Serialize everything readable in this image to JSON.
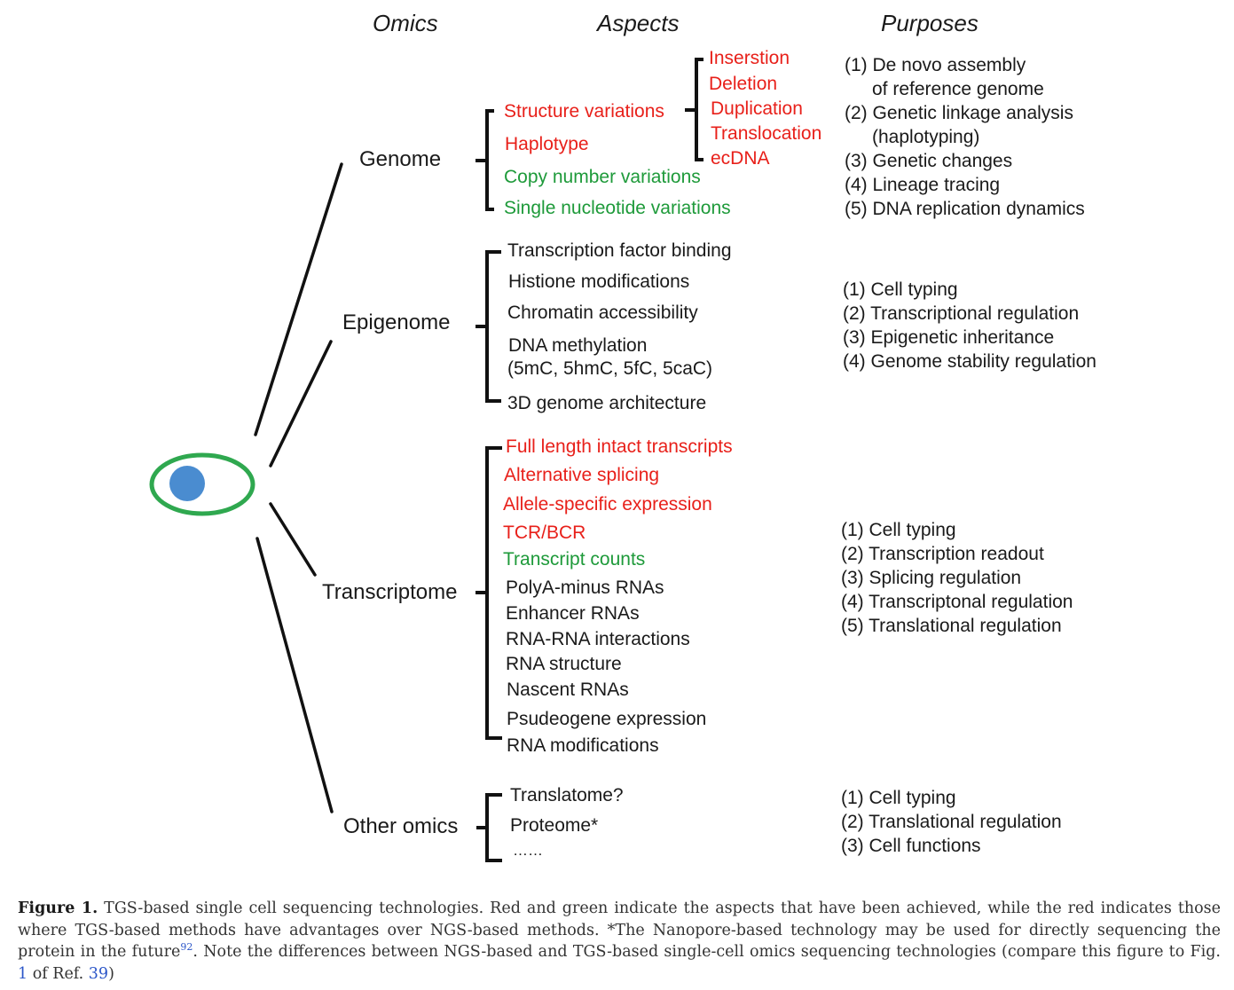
{
  "headers": {
    "omics": "Omics",
    "aspects": "Aspects",
    "purposes": "Purposes"
  },
  "colors": {
    "achieved_advantage": "#e8201a",
    "achieved": "#1e9a3a",
    "cell_outline": "#2fa84f",
    "nucleus": "#4a8cd0"
  },
  "genome": {
    "label": "Genome",
    "structure_variations": "Structure variations",
    "sv_types": [
      "Inserstion",
      "Deletion",
      "Duplication",
      "Translocation",
      "ecDNA"
    ],
    "haplotype": "Haplotype",
    "copy_number": "Copy number variations",
    "snv": "Single nucleotide variations",
    "purposes": [
      "(1) De novo assembly",
      "of reference genome",
      "(2) Genetic linkage analysis",
      "(haplotyping)",
      "(3) Genetic changes",
      "(4) Lineage tracing",
      "(5) DNA replication dynamics"
    ]
  },
  "epigenome": {
    "label": "Epigenome",
    "aspects": [
      "Transcription factor binding",
      "Histione modifications",
      "Chromatin accessibility",
      "DNA methylation",
      "(5mC, 5hmC, 5fC, 5caC)",
      "3D genome architecture"
    ],
    "purposes": [
      "(1) Cell typing",
      "(2) Transcriptional regulation",
      "(3) Epigenetic inheritance",
      "(4) Genome stability regulation"
    ]
  },
  "transcriptome": {
    "label": "Transcriptome",
    "aspects": [
      "Full length intact transcripts",
      "Alternative splicing",
      "Allele-specific expression",
      "TCR/BCR",
      "Transcript counts",
      "PolyA-minus RNAs",
      "Enhancer RNAs",
      "RNA-RNA interactions",
      "RNA structure",
      "Nascent RNAs",
      "Psudeogene expression",
      "RNA modifications"
    ],
    "purposes": [
      "(1) Cell typing",
      "(2) Transcription readout",
      "(3) Splicing regulation",
      "(4) Transcriptonal regulation",
      "(5) Translational regulation"
    ]
  },
  "other": {
    "label": "Other omics",
    "aspects": [
      "Translatome?",
      "Proteome*",
      "……"
    ],
    "purposes": [
      "(1) Cell typing",
      "(2) Translational regulation",
      "(3) Cell functions"
    ]
  },
  "caption": {
    "label": "Figure 1.",
    "text1": " TGS-based single cell sequencing technologies. Red and green indicate the aspects that have been achieved, while the red indicates those where TGS-based methods have advantages over NGS-based methods. *The Nanopore-based technology may be used for directly sequencing the protein in the future",
    "sup": "92",
    "text2": ". Note the differences between NGS-based and TGS-based single-cell omics sequencing technologies (compare this figure to Fig. ",
    "fig_ref": "1",
    "text3": " of Ref. ",
    "ref_num": "39",
    "text4": ")"
  }
}
